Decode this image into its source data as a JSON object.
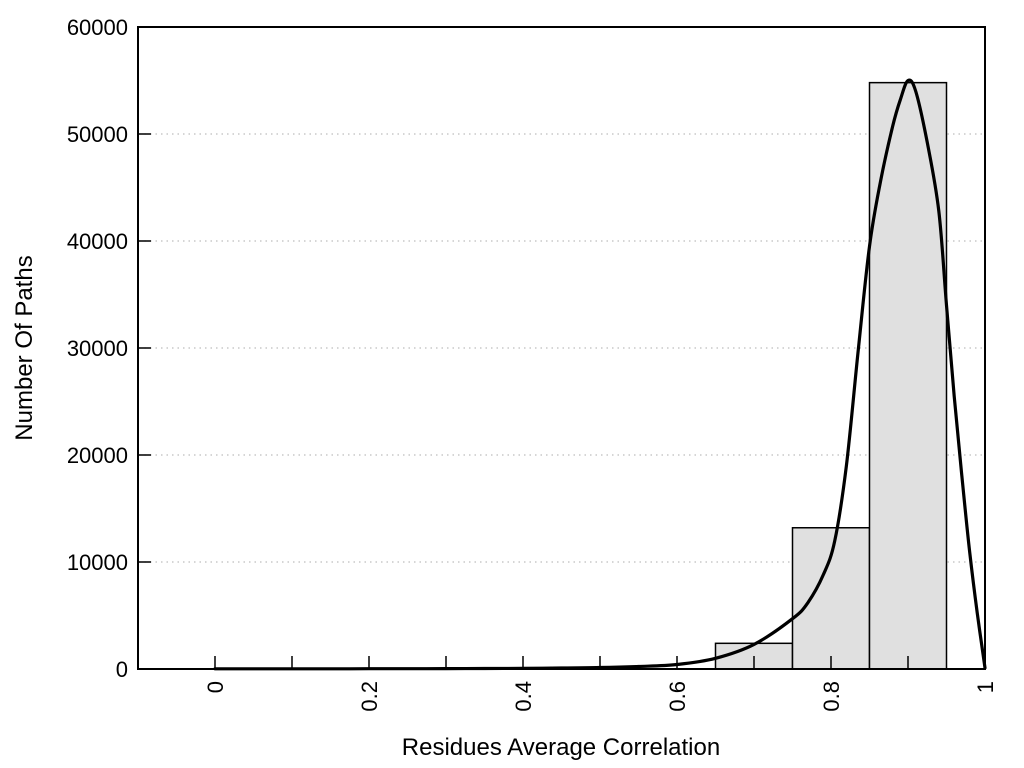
{
  "page": {
    "background": "#ffffff"
  },
  "chart_data": {
    "type": "histogram",
    "overlay": "density-curve",
    "title": "",
    "xlabel": "Residues Average Correlation",
    "ylabel": "Number Of Paths",
    "xlim": [
      -0.1,
      1.0
    ],
    "ylim": [
      0,
      60000
    ],
    "grid": "horizontal-dotted",
    "legend": "none",
    "x_ticks": [
      {
        "value": 0.0,
        "label": "0"
      },
      {
        "value": 0.1,
        "label": ""
      },
      {
        "value": 0.2,
        "label": "0.2"
      },
      {
        "value": 0.3,
        "label": ""
      },
      {
        "value": 0.4,
        "label": "0.4"
      },
      {
        "value": 0.5,
        "label": ""
      },
      {
        "value": 0.6,
        "label": "0.6"
      },
      {
        "value": 0.7,
        "label": ""
      },
      {
        "value": 0.8,
        "label": "0.8"
      },
      {
        "value": 0.9,
        "label": ""
      },
      {
        "value": 1.0,
        "label": "1"
      }
    ],
    "y_ticks": [
      {
        "value": 0,
        "label": "0"
      },
      {
        "value": 10000,
        "label": "10000"
      },
      {
        "value": 20000,
        "label": "20000"
      },
      {
        "value": 30000,
        "label": "30000"
      },
      {
        "value": 40000,
        "label": "40000"
      },
      {
        "value": 50000,
        "label": "50000"
      },
      {
        "value": 60000,
        "label": "60000"
      }
    ],
    "bars": {
      "bin_width": 0.1,
      "bins": [
        {
          "x0": 0.65,
          "x1": 0.75,
          "count": 2400
        },
        {
          "x0": 0.75,
          "x1": 0.85,
          "count": 13200
        },
        {
          "x0": 0.85,
          "x1": 0.95,
          "count": 54800
        }
      ]
    },
    "curve_points": [
      [
        0.0,
        20
      ],
      [
        0.05,
        20
      ],
      [
        0.1,
        20
      ],
      [
        0.15,
        20
      ],
      [
        0.2,
        25
      ],
      [
        0.25,
        30
      ],
      [
        0.3,
        35
      ],
      [
        0.35,
        45
      ],
      [
        0.4,
        60
      ],
      [
        0.45,
        90
      ],
      [
        0.5,
        140
      ],
      [
        0.55,
        230
      ],
      [
        0.6,
        420
      ],
      [
        0.65,
        1000
      ],
      [
        0.7,
        2300
      ],
      [
        0.75,
        4700
      ],
      [
        0.77,
        6200
      ],
      [
        0.79,
        8800
      ],
      [
        0.805,
        12000
      ],
      [
        0.82,
        19000
      ],
      [
        0.835,
        29500
      ],
      [
        0.85,
        39500
      ],
      [
        0.865,
        45800
      ],
      [
        0.88,
        50700
      ],
      [
        0.89,
        53200
      ],
      [
        0.9,
        55000
      ],
      [
        0.91,
        54000
      ],
      [
        0.925,
        49200
      ],
      [
        0.94,
        42800
      ],
      [
        0.95,
        34000
      ],
      [
        0.96,
        25500
      ],
      [
        0.97,
        18000
      ],
      [
        0.98,
        11000
      ],
      [
        0.99,
        5200
      ],
      [
        1.0,
        100
      ]
    ],
    "colors": {
      "bar_fill": "#e0e0e0",
      "bar_edge": "#000000",
      "curve": "#000000",
      "frame": "#000000",
      "grid": "#bdbdbd",
      "text": "#000000"
    }
  }
}
